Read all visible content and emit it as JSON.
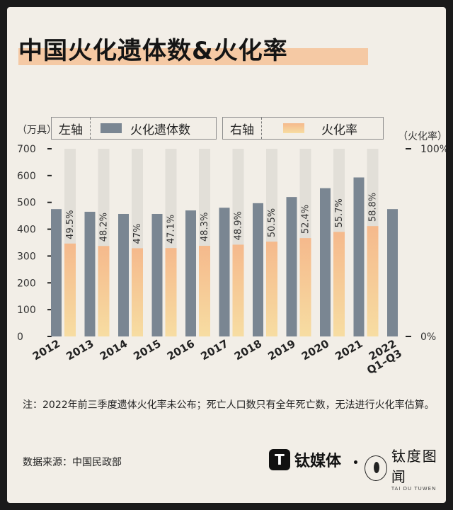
{
  "title": "中国火化遗体数&火化率",
  "legend": {
    "left_axis": "左轴",
    "left_series": "火化遗体数",
    "right_axis": "右轴",
    "right_series": "火化率"
  },
  "units": {
    "left": "（万具）",
    "right": "（火化率）"
  },
  "note": "注：2022年前三季度遗体火化率未公布；死亡人口数只有全年死亡数，无法进行火化率估算。",
  "source": "数据来源：中国民政部",
  "brands": {
    "brand1_logo": "T",
    "brand1_name": "钛媒体",
    "brand2_name": "钛度图闻",
    "brand2_sub": "TAI DU TUWEN"
  },
  "colors": {
    "background": "#f2eee7",
    "bar_count": "#7a8692",
    "rate_gradient_top": "#f5b98c",
    "rate_gradient_bottom": "#f7dda2",
    "track": "#e2dfd8",
    "title_highlight": "#f5c9a4"
  },
  "chart_data": {
    "type": "bar",
    "categories": [
      "2012",
      "2013",
      "2014",
      "2015",
      "2016",
      "2017",
      "2018",
      "2019",
      "2020",
      "2021",
      "2022\nQ1–Q3"
    ],
    "series": [
      {
        "name": "火化遗体数",
        "axis": "left",
        "values": [
          475,
          465,
          457,
          457,
          470,
          480,
          497,
          520,
          553,
          593,
          475
        ]
      },
      {
        "name": "火化率",
        "axis": "right",
        "values": [
          49.5,
          48.2,
          47,
          47.1,
          48.3,
          48.9,
          50.5,
          52.4,
          55.7,
          58.8,
          null
        ],
        "labels": [
          "49.5%",
          "48.2%",
          "47%",
          "47.1%",
          "48.3%",
          "48.9%",
          "50.5%",
          "52.4%",
          "55.7%",
          "58.8%",
          ""
        ]
      }
    ],
    "left_ylim": [
      0,
      700
    ],
    "left_ticks": [
      "0",
      "100",
      "200",
      "300",
      "400",
      "500",
      "600",
      "700"
    ],
    "right_ylim": [
      0,
      100
    ],
    "right_ticks": [
      "0%",
      "100%"
    ]
  }
}
